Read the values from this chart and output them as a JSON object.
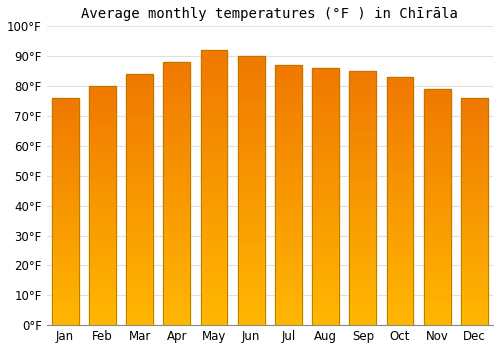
{
  "title": "Average monthly temperatures (°F ) in Chīrāla",
  "months": [
    "Jan",
    "Feb",
    "Mar",
    "Apr",
    "May",
    "Jun",
    "Jul",
    "Aug",
    "Sep",
    "Oct",
    "Nov",
    "Dec"
  ],
  "values": [
    76,
    80,
    84,
    88,
    92,
    90,
    87,
    86,
    85,
    83,
    79,
    76
  ],
  "bar_color_top": "#FFB700",
  "bar_color_bottom": "#F07800",
  "bar_edge_color": "#B07800",
  "background_color": "#FFFFFF",
  "grid_color": "#E0E0E0",
  "ylim": [
    0,
    100
  ],
  "yticks": [
    0,
    10,
    20,
    30,
    40,
    50,
    60,
    70,
    80,
    90,
    100
  ],
  "ytick_labels": [
    "0°F",
    "10°F",
    "20°F",
    "30°F",
    "40°F",
    "50°F",
    "60°F",
    "70°F",
    "80°F",
    "90°F",
    "100°F"
  ],
  "title_fontsize": 10,
  "tick_fontsize": 8.5
}
